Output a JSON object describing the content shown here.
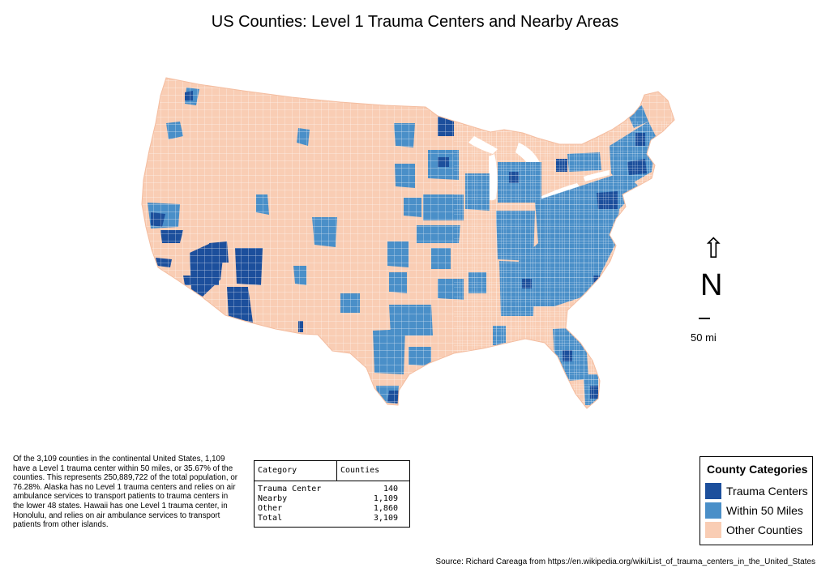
{
  "title": "US Counties: Level 1 Trauma Centers and Nearby Areas",
  "compass": {
    "arrow": "⇧",
    "letter": "N"
  },
  "scale": {
    "label": "50 mi"
  },
  "summary_text": "Of the 3,109 counties in the continental United States, 1,109 have a Level 1 trauma center within 50 miles, or 35.67% of the counties. This represents 250,889,722 of the total population, or 76.28%. Alaska has no Level 1 trauma centers and relies on air ambulance services to transport patients to trauma centers in the lower 48 states. Hawaii has one Level 1 trauma center, in Honolulu, and relies on air ambulance services to transport patients from other islands.",
  "table": {
    "headers": [
      "Category",
      "Counties"
    ],
    "rows": [
      [
        "Trauma Center",
        "140"
      ],
      [
        "Nearby",
        "1,109"
      ],
      [
        "Other",
        "1,860"
      ],
      [
        "Total",
        "3,109"
      ]
    ]
  },
  "legend": {
    "title": "County Categories",
    "items": [
      {
        "label": "Trauma Centers",
        "color": "#1c4f9c"
      },
      {
        "label": "Within 50 Miles",
        "color": "#4a8fc8"
      },
      {
        "label": "Other Counties",
        "color": "#f9cdb4"
      }
    ]
  },
  "colors": {
    "trauma": "#1c4f9c",
    "nearby": "#4a8fc8",
    "other": "#f9cdb4"
  },
  "source": "Source: Richard Careaga from https://en.wikipedia.org/wiki/List_of_trauma_centers_in_the_United_States"
}
